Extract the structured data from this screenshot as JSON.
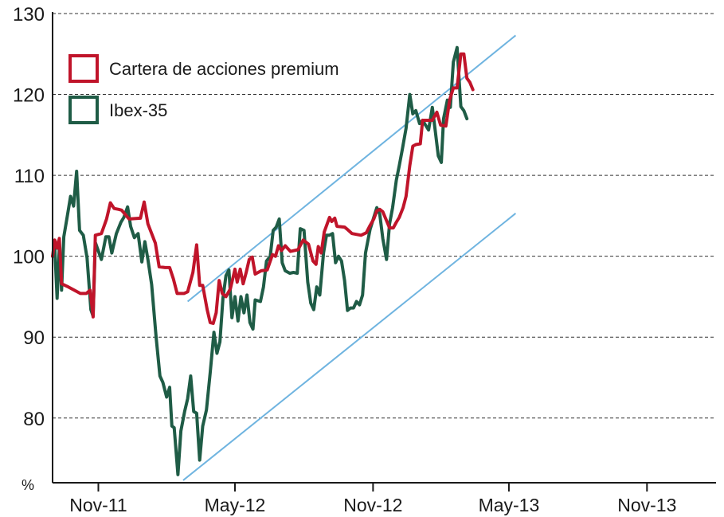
{
  "chart_data": {
    "type": "line",
    "unit_label": "%",
    "ylim": [
      72,
      130
    ],
    "y_ticks": [
      80,
      90,
      100,
      110,
      120,
      130
    ],
    "x_tick_labels": [
      "Nov-11",
      "May-12",
      "Nov-12",
      "May-13",
      "Nov-13"
    ],
    "x_tick_dates": [
      "2011-11-01",
      "2012-05-01",
      "2012-11-01",
      "2013-05-01",
      "2013-11-01"
    ],
    "x_range": [
      "2011-09-01",
      "2014-02-01"
    ],
    "grid": "horizontal dashed",
    "legend_position": "top-left",
    "series": [
      {
        "name": "Cartera de acciones premium",
        "color": "#c0142a",
        "points": [
          [
            "2011-09-01",
            100.0
          ],
          [
            "2011-09-04",
            102.0
          ],
          [
            "2011-09-07",
            101.0
          ],
          [
            "2011-09-10",
            102.2
          ],
          [
            "2011-09-13",
            96.6
          ],
          [
            "2011-09-22",
            96.2
          ],
          [
            "2011-10-08",
            95.4
          ],
          [
            "2011-10-16",
            95.4
          ],
          [
            "2011-10-21",
            95.8
          ],
          [
            "2011-10-24",
            93.5
          ],
          [
            "2011-10-25",
            92.5
          ],
          [
            "2011-10-28",
            102.6
          ],
          [
            "2011-11-05",
            102.8
          ],
          [
            "2011-11-12",
            104.6
          ],
          [
            "2011-11-17",
            106.6
          ],
          [
            "2011-11-22",
            105.9
          ],
          [
            "2011-11-28",
            105.8
          ],
          [
            "2011-12-02",
            105.7
          ],
          [
            "2011-12-12",
            104.6
          ],
          [
            "2011-12-27",
            104.7
          ],
          [
            "2012-01-01",
            106.7
          ],
          [
            "2012-01-06",
            104.0
          ],
          [
            "2012-01-16",
            101.6
          ],
          [
            "2012-01-21",
            98.7
          ],
          [
            "2012-01-29",
            98.6
          ],
          [
            "2012-02-04",
            98.6
          ],
          [
            "2012-02-09",
            97.2
          ],
          [
            "2012-02-14",
            95.4
          ],
          [
            "2012-02-23",
            95.4
          ],
          [
            "2012-02-28",
            95.6
          ],
          [
            "2012-03-06",
            98.0
          ],
          [
            "2012-03-11",
            101.4
          ],
          [
            "2012-03-15",
            96.4
          ],
          [
            "2012-03-19",
            96.4
          ],
          [
            "2012-03-25",
            93.4
          ],
          [
            "2012-03-29",
            91.8
          ],
          [
            "2012-04-02",
            91.7
          ],
          [
            "2012-04-06",
            93.0
          ],
          [
            "2012-04-10",
            97.0
          ],
          [
            "2012-04-14",
            95.4
          ],
          [
            "2012-04-19",
            95.0
          ],
          [
            "2012-04-25",
            96.0
          ],
          [
            "2012-05-01",
            98.4
          ],
          [
            "2012-05-04",
            96.8
          ],
          [
            "2012-05-08",
            98.4
          ],
          [
            "2012-05-12",
            96.6
          ],
          [
            "2012-05-16",
            98.0
          ],
          [
            "2012-05-20",
            99.6
          ],
          [
            "2012-05-24",
            99.9
          ],
          [
            "2012-05-28",
            97.8
          ],
          [
            "2012-06-05",
            98.2
          ],
          [
            "2012-06-13",
            98.3
          ],
          [
            "2012-06-20",
            100.2
          ],
          [
            "2012-06-24",
            100.0
          ],
          [
            "2012-06-28",
            101.3
          ],
          [
            "2012-07-02",
            100.7
          ],
          [
            "2012-07-07",
            101.3
          ],
          [
            "2012-07-14",
            100.6
          ],
          [
            "2012-07-24",
            100.8
          ],
          [
            "2012-07-31",
            102.0
          ],
          [
            "2012-08-07",
            101.5
          ],
          [
            "2012-08-13",
            99.4
          ],
          [
            "2012-08-17",
            99.0
          ],
          [
            "2012-08-20",
            101.2
          ],
          [
            "2012-08-24",
            100.4
          ],
          [
            "2012-08-28",
            103.0
          ],
          [
            "2012-09-04",
            104.8
          ],
          [
            "2012-09-07",
            104.3
          ],
          [
            "2012-09-11",
            104.7
          ],
          [
            "2012-09-14",
            103.7
          ],
          [
            "2012-09-24",
            103.6
          ],
          [
            "2012-09-28",
            103.3
          ],
          [
            "2012-10-04",
            102.8
          ],
          [
            "2012-10-16",
            102.6
          ],
          [
            "2012-10-23",
            102.9
          ],
          [
            "2012-10-28",
            103.8
          ],
          [
            "2012-11-02",
            104.6
          ],
          [
            "2012-11-06",
            105.6
          ],
          [
            "2012-11-10",
            105.8
          ],
          [
            "2012-11-14",
            105.5
          ],
          [
            "2012-11-19",
            104.4
          ],
          [
            "2012-11-23",
            103.5
          ],
          [
            "2012-11-28",
            103.5
          ],
          [
            "2012-12-02",
            104.2
          ],
          [
            "2012-12-06",
            104.8
          ],
          [
            "2012-12-11",
            106.0
          ],
          [
            "2012-12-15",
            107.4
          ],
          [
            "2012-12-20",
            111.2
          ],
          [
            "2012-12-24",
            113.6
          ],
          [
            "2012-12-28",
            113.8
          ],
          [
            "2013-01-03",
            113.9
          ],
          [
            "2013-01-06",
            116.8
          ],
          [
            "2013-01-12",
            116.8
          ],
          [
            "2013-01-19",
            116.8
          ],
          [
            "2013-01-25",
            117.8
          ],
          [
            "2013-01-30",
            116.2
          ],
          [
            "2013-02-06",
            116.1
          ],
          [
            "2013-02-11",
            119.3
          ],
          [
            "2013-02-16",
            120.8
          ],
          [
            "2013-02-21",
            120.8
          ],
          [
            "2013-02-26",
            125.0
          ],
          [
            "2013-03-02",
            125.0
          ],
          [
            "2013-03-06",
            122.0
          ],
          [
            "2013-03-10",
            121.5
          ],
          [
            "2013-03-14",
            120.6
          ]
        ]
      },
      {
        "name": "Ibex-35",
        "color": "#1f5c46",
        "points": [
          [
            "2011-09-01",
            100.0
          ],
          [
            "2011-09-04",
            101.0
          ],
          [
            "2011-09-07",
            94.8
          ],
          [
            "2011-09-10",
            101.2
          ],
          [
            "2011-09-13",
            95.8
          ],
          [
            "2011-09-16",
            102.4
          ],
          [
            "2011-09-20",
            104.6
          ],
          [
            "2011-09-25",
            107.4
          ],
          [
            "2011-09-29",
            106.2
          ],
          [
            "2011-10-03",
            110.5
          ],
          [
            "2011-10-07",
            103.2
          ],
          [
            "2011-10-12",
            102.6
          ],
          [
            "2011-10-17",
            99.8
          ],
          [
            "2011-10-22",
            93.4
          ],
          [
            "2011-10-25",
            92.6
          ],
          [
            "2011-10-28",
            101.7
          ],
          [
            "2011-11-05",
            99.6
          ],
          [
            "2011-11-11",
            102.4
          ],
          [
            "2011-11-15",
            102.4
          ],
          [
            "2011-11-19",
            100.4
          ],
          [
            "2011-11-25",
            102.8
          ],
          [
            "2011-12-01",
            104.2
          ],
          [
            "2011-12-05",
            104.8
          ],
          [
            "2011-12-10",
            106.1
          ],
          [
            "2011-12-14",
            103.7
          ],
          [
            "2011-12-19",
            102.3
          ],
          [
            "2011-12-24",
            102.8
          ],
          [
            "2011-12-29",
            99.3
          ],
          [
            "2012-01-02",
            101.8
          ],
          [
            "2012-01-06",
            99.6
          ],
          [
            "2012-01-11",
            96.5
          ],
          [
            "2012-01-17",
            90.0
          ],
          [
            "2012-01-22",
            85.2
          ],
          [
            "2012-01-26",
            84.4
          ],
          [
            "2012-01-31",
            82.6
          ],
          [
            "2012-02-04",
            83.8
          ],
          [
            "2012-02-07",
            79.0
          ],
          [
            "2012-02-10",
            78.8
          ],
          [
            "2012-02-15",
            73.0
          ],
          [
            "2012-02-19",
            78.4
          ],
          [
            "2012-02-24",
            80.8
          ],
          [
            "2012-02-28",
            82.4
          ],
          [
            "2012-03-03",
            85.2
          ],
          [
            "2012-03-07",
            80.8
          ],
          [
            "2012-03-11",
            80.6
          ],
          [
            "2012-03-15",
            74.8
          ],
          [
            "2012-03-19",
            79.0
          ],
          [
            "2012-03-24",
            81.0
          ],
          [
            "2012-03-29",
            85.6
          ],
          [
            "2012-04-03",
            90.6
          ],
          [
            "2012-04-07",
            88.0
          ],
          [
            "2012-04-11",
            89.4
          ],
          [
            "2012-04-15",
            94.8
          ],
          [
            "2012-04-19",
            97.6
          ],
          [
            "2012-04-23",
            98.3
          ],
          [
            "2012-04-27",
            92.4
          ],
          [
            "2012-05-01",
            95.0
          ],
          [
            "2012-05-05",
            92.0
          ],
          [
            "2012-05-09",
            95.0
          ],
          [
            "2012-05-13",
            93.0
          ],
          [
            "2012-05-17",
            95.2
          ],
          [
            "2012-05-21",
            91.8
          ],
          [
            "2012-05-25",
            91.0
          ],
          [
            "2012-05-28",
            94.6
          ],
          [
            "2012-06-04",
            94.4
          ],
          [
            "2012-06-08",
            96.2
          ],
          [
            "2012-06-12",
            99.4
          ],
          [
            "2012-06-17",
            100.0
          ],
          [
            "2012-06-21",
            103.2
          ],
          [
            "2012-06-25",
            103.6
          ],
          [
            "2012-06-29",
            104.6
          ],
          [
            "2012-07-03",
            99.2
          ],
          [
            "2012-07-07",
            98.2
          ],
          [
            "2012-07-13",
            97.9
          ],
          [
            "2012-07-18",
            98.0
          ],
          [
            "2012-07-23",
            97.9
          ],
          [
            "2012-07-27",
            103.4
          ],
          [
            "2012-08-01",
            103.2
          ],
          [
            "2012-08-06",
            96.8
          ],
          [
            "2012-08-10",
            94.2
          ],
          [
            "2012-08-14",
            93.4
          ],
          [
            "2012-08-18",
            96.2
          ],
          [
            "2012-08-22",
            95.2
          ],
          [
            "2012-08-27",
            100.4
          ],
          [
            "2012-08-31",
            102.6
          ],
          [
            "2012-09-04",
            102.6
          ],
          [
            "2012-09-08",
            102.8
          ],
          [
            "2012-09-12",
            99.2
          ],
          [
            "2012-09-16",
            100.0
          ],
          [
            "2012-09-20",
            99.4
          ],
          [
            "2012-09-24",
            97.0
          ],
          [
            "2012-09-28",
            93.3
          ],
          [
            "2012-10-02",
            93.6
          ],
          [
            "2012-10-06",
            93.6
          ],
          [
            "2012-10-10",
            94.4
          ],
          [
            "2012-10-14",
            94.0
          ],
          [
            "2012-10-18",
            95.2
          ],
          [
            "2012-10-22",
            100.4
          ],
          [
            "2012-10-28",
            103.3
          ],
          [
            "2012-11-02",
            104.8
          ],
          [
            "2012-11-06",
            106.0
          ],
          [
            "2012-11-10",
            105.2
          ],
          [
            "2012-11-14",
            102.2
          ],
          [
            "2012-11-19",
            99.6
          ],
          [
            "2012-11-23",
            104.0
          ],
          [
            "2012-11-27",
            106.0
          ],
          [
            "2012-12-02",
            109.4
          ],
          [
            "2012-12-06",
            111.2
          ],
          [
            "2012-12-10",
            113.2
          ],
          [
            "2012-12-15",
            115.8
          ],
          [
            "2012-12-20",
            120.0
          ],
          [
            "2012-12-24",
            117.6
          ],
          [
            "2012-12-28",
            118.0
          ],
          [
            "2013-01-02",
            116.4
          ],
          [
            "2013-01-06",
            116.8
          ],
          [
            "2013-01-10",
            116.2
          ],
          [
            "2013-01-14",
            115.6
          ],
          [
            "2013-01-19",
            118.4
          ],
          [
            "2013-01-23",
            115.4
          ],
          [
            "2013-01-27",
            112.4
          ],
          [
            "2013-01-31",
            111.6
          ],
          [
            "2013-02-03",
            117.0
          ],
          [
            "2013-02-08",
            119.3
          ],
          [
            "2013-02-12",
            118.4
          ],
          [
            "2013-02-16",
            124.0
          ],
          [
            "2013-02-21",
            125.8
          ],
          [
            "2013-02-26",
            118.5
          ],
          [
            "2013-03-02",
            118.0
          ],
          [
            "2013-03-06",
            117.0
          ]
        ]
      }
    ],
    "trend_lines": {
      "color": "#6fb4e0",
      "lines": [
        {
          "name": "canal-superior",
          "from": [
            "2012-02-28",
            94.4
          ],
          "to": [
            "2013-05-10",
            127.3
          ]
        },
        {
          "name": "canal-inferior",
          "from": [
            "2012-02-22",
            72.3
          ],
          "to": [
            "2013-05-10",
            105.3
          ]
        }
      ]
    }
  }
}
